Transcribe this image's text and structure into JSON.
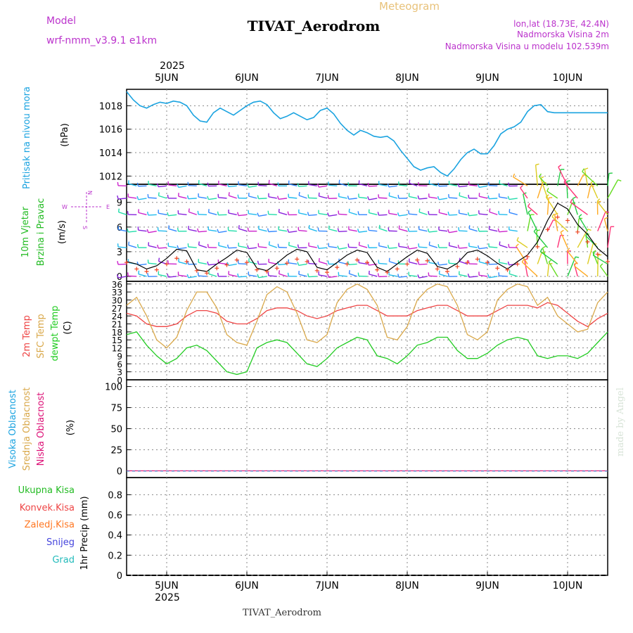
{
  "header": {
    "model_label": "Model",
    "model_name": "wrf-nmm_v3.9.1 e1km",
    "meteogram_label": "Meteogram",
    "station_title": "TIVAT_Aerodrom",
    "lonlat": "lon,lat (18.73E, 42.4N)",
    "elevation": "Nadmorska Visina 2m",
    "model_elevation": "Nadmorska Visina u modelu 102.539m",
    "footer_station": "TIVAT_Aerodrom",
    "watermark": "made by Angel"
  },
  "colors": {
    "pressure": "#1aa3e0",
    "wind_label": "#22bb22",
    "temp2m": "#ee4444",
    "sfc": "#d9a84a",
    "dewpt": "#22cc22",
    "magenta": "#bb33cc",
    "cloud_high": "#1aa3e0",
    "cloud_mid": "#d9a84a",
    "cloud_low": "#dd1177",
    "precip_total": "#22bb22",
    "precip_conv": "#ee4444",
    "precip_frz": "#ff7722",
    "precip_snow": "#4444dd",
    "precip_grad": "#22bbbb",
    "grid": "#888888"
  },
  "chart_data": [
    {
      "type": "line",
      "panel": "pressure",
      "ylabel_lines": [
        "Pritisak na nivou mora"
      ],
      "unit": "(hPa)",
      "ylim": [
        1011.3,
        1019.4
      ],
      "yticks": [
        1012,
        1014,
        1016,
        1018
      ],
      "x_hours_from": "2025-06-04T12",
      "x_day_ticks": [
        "2025-06-05",
        "2025-06-06",
        "2025-06-07",
        "2025-06-08",
        "2025-06-09",
        "2025-06-10"
      ],
      "x": [
        0,
        2,
        4,
        6,
        8,
        10,
        12,
        14,
        16,
        18,
        20,
        22,
        24,
        26,
        28,
        30,
        32,
        34,
        36,
        38,
        40,
        42,
        44,
        46,
        48,
        50,
        52,
        54,
        56,
        58,
        60,
        62,
        64,
        66,
        68,
        70,
        72,
        74,
        76,
        78,
        80,
        82,
        84,
        86,
        88,
        90,
        92,
        94,
        96,
        98,
        100,
        102,
        104,
        106,
        108,
        110,
        112,
        114,
        116,
        118,
        120,
        122,
        124,
        126,
        128,
        130,
        132,
        134,
        136,
        138,
        140,
        142,
        144
      ],
      "series": [
        {
          "key": "slp",
          "values": [
            1019.2,
            1018.5,
            1018.0,
            1017.8,
            1018.1,
            1018.3,
            1018.2,
            1018.4,
            1018.3,
            1018.0,
            1017.2,
            1016.7,
            1016.6,
            1017.4,
            1017.8,
            1017.5,
            1017.2,
            1017.6,
            1018.0,
            1018.3,
            1018.4,
            1018.1,
            1017.4,
            1016.9,
            1017.1,
            1017.4,
            1017.1,
            1016.8,
            1017.0,
            1017.6,
            1017.8,
            1017.3,
            1016.5,
            1015.9,
            1015.5,
            1015.9,
            1015.7,
            1015.4,
            1015.3,
            1015.4,
            1015.0,
            1014.2,
            1013.5,
            1012.8,
            1012.5,
            1012.7,
            1012.8,
            1012.3,
            1012.0,
            1012.6,
            1013.4,
            1014.0,
            1014.3,
            1013.9,
            1013.9,
            1014.6,
            1015.6,
            1016.0,
            1016.2,
            1016.6,
            1017.5,
            1018.0,
            1018.1,
            1017.5,
            1017.4,
            1017.4,
            1017.4,
            1017.4,
            1017.4,
            1017.4,
            1017.4,
            1017.4,
            1017.4
          ]
        }
      ]
    },
    {
      "type": "wind_barbs",
      "panel": "wind",
      "ylabel_lines": [
        "10m Vjetar",
        "Brzina i Pravac"
      ],
      "unit": "(m/s)",
      "compass": {
        "n": "N",
        "s": "S",
        "w": "W",
        "e": "E"
      },
      "ylim": [
        -0.6,
        11.2
      ],
      "yticks": [
        0,
        3,
        6,
        9
      ],
      "barb_rows": [
        0.0,
        1.5,
        3.5,
        5.5,
        7.5,
        9.5,
        11.0
      ],
      "x_hours_from": "2025-06-04T12",
      "x": [
        0,
        3,
        6,
        9,
        12,
        15,
        18,
        21,
        24,
        27,
        30,
        33,
        36,
        39,
        42,
        45,
        48,
        51,
        54,
        57,
        60,
        63,
        66,
        69,
        72,
        75,
        78,
        81,
        84,
        87,
        90,
        93,
        96,
        99,
        102,
        105,
        108,
        111,
        114,
        117,
        120,
        123,
        126,
        129,
        132,
        135,
        138,
        141,
        144
      ],
      "series": [
        {
          "key": "speed",
          "values": [
            1.8,
            1.5,
            0.9,
            1.3,
            2.2,
            3.3,
            3.1,
            0.8,
            0.6,
            1.5,
            2.3,
            3.2,
            2.9,
            1.0,
            0.7,
            1.6,
            2.6,
            3.3,
            3.0,
            1.1,
            0.8,
            1.7,
            2.6,
            3.2,
            2.9,
            1.1,
            0.6,
            1.5,
            2.4,
            3.2,
            2.8,
            1.2,
            0.9,
            1.6,
            2.9,
            3.2,
            2.5,
            1.6,
            0.9,
            1.8,
            2.6,
            4.2,
            6.8,
            8.9,
            8.2,
            6.3,
            5.1,
            3.4,
            2.4
          ]
        },
        {
          "key": "gust",
          "values": [
            1.7,
            0.9,
            0.6,
            0.8,
            1.5,
            2.2,
            1.8,
            0.7,
            0.4,
            1.0,
            1.4,
            2.0,
            1.7,
            0.8,
            0.6,
            1.0,
            1.6,
            2.1,
            1.8,
            0.7,
            0.5,
            1.1,
            1.5,
            2.0,
            1.7,
            0.8,
            0.5,
            0.9,
            1.5,
            2.0,
            1.9,
            0.9,
            0.6,
            1.2,
            1.7,
            2.1,
            1.7,
            1.0,
            0.8,
            1.5,
            2.4,
            3.6,
            5.7,
            7.2,
            6.8,
            5.4,
            4.2,
            2.7,
            1.8
          ]
        }
      ]
    },
    {
      "type": "line",
      "panel": "temperature",
      "ylabel_lines": [
        "2m Temp",
        "SFC Temp",
        "dewpt Temp"
      ],
      "unit": "(C)",
      "ylim": [
        0,
        37
      ],
      "yticks": [
        0,
        3,
        6,
        9,
        12,
        15,
        18,
        21,
        24,
        27,
        30,
        33,
        36
      ],
      "x_hours_from": "2025-06-04T12",
      "x": [
        0,
        3,
        6,
        9,
        12,
        15,
        18,
        21,
        24,
        27,
        30,
        33,
        36,
        39,
        42,
        45,
        48,
        51,
        54,
        57,
        60,
        63,
        66,
        69,
        72,
        75,
        78,
        81,
        84,
        87,
        90,
        93,
        96,
        99,
        102,
        105,
        108,
        111,
        114,
        117,
        120,
        123,
        126,
        129,
        132,
        135,
        138,
        141,
        144
      ],
      "series": [
        {
          "key": "t2m",
          "values": [
            25,
            24,
            21,
            20,
            20,
            21,
            24,
            26,
            26,
            25,
            22,
            21,
            21,
            23,
            26,
            27,
            27,
            26,
            24,
            23,
            24,
            26,
            27,
            28,
            28,
            26,
            24,
            24,
            24,
            26,
            27,
            28,
            28,
            26,
            24,
            24,
            24,
            26,
            28,
            28,
            28,
            27,
            29,
            28,
            25,
            22,
            20,
            23,
            25
          ]
        },
        {
          "key": "sfc",
          "values": [
            28,
            31,
            24,
            15,
            12,
            16,
            26,
            33,
            33,
            27,
            17,
            14,
            13,
            22,
            32,
            35,
            33,
            25,
            15,
            14,
            17,
            29,
            34,
            36,
            34,
            28,
            16,
            15,
            20,
            30,
            34,
            36,
            35,
            28,
            17,
            15,
            18,
            30,
            34,
            36,
            35,
            28,
            31,
            24,
            21,
            18,
            19,
            29,
            33
          ]
        },
        {
          "key": "dewpt",
          "values": [
            17,
            18,
            13,
            9,
            6,
            8,
            12,
            13,
            11,
            7,
            3,
            2,
            3,
            12,
            14,
            15,
            14,
            10,
            6,
            5,
            8,
            12,
            14,
            16,
            15,
            9,
            8,
            6,
            9,
            13,
            14,
            16,
            16,
            11,
            8,
            8,
            10,
            13,
            15,
            16,
            15,
            9,
            8,
            9,
            9,
            8,
            10,
            14,
            18
          ]
        }
      ]
    },
    {
      "type": "line",
      "panel": "clouds",
      "ylabel_lines": [
        "Visoka Oblacnost",
        "Srednja Oblacnost",
        "Niska Oblacnost"
      ],
      "unit": "(%)",
      "ylim": [
        -8,
        108
      ],
      "yticks": [
        0,
        25,
        50,
        75,
        100
      ],
      "x_hours_from": "2025-06-04T12",
      "x": [
        0,
        144
      ],
      "series": [
        {
          "key": "high",
          "values": [
            0,
            0
          ]
        },
        {
          "key": "mid",
          "values": [
            0,
            0
          ]
        },
        {
          "key": "low",
          "values": [
            0,
            0
          ]
        }
      ]
    },
    {
      "type": "line",
      "panel": "precip",
      "ylabel_lines": [
        "1hr Precip"
      ],
      "unit": "(mm)",
      "legend": [
        "Ukupna Kisa",
        "Konvek.Kisa",
        "Zaledj.Kisa",
        "Snijeg",
        "Grad"
      ],
      "ylim": [
        0,
        0.97
      ],
      "yticks": [
        "0",
        "0.2",
        "0.4",
        "0.6",
        "0.8"
      ],
      "x_hours_from": "2025-06-04T12",
      "x": [
        0,
        144
      ],
      "series": [
        {
          "key": "total",
          "values": [
            0,
            0
          ]
        }
      ]
    }
  ],
  "xaxis": {
    "year": "2025",
    "day_labels": [
      "5JUN",
      "6JUN",
      "7JUN",
      "8JUN",
      "9JUN",
      "10JUN"
    ]
  }
}
